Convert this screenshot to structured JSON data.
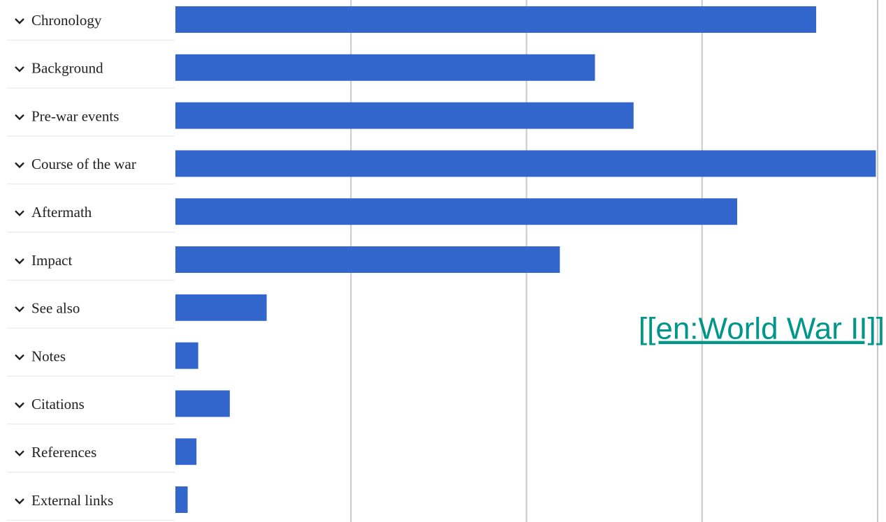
{
  "chart_data": {
    "type": "bar",
    "orientation": "horizontal",
    "categories": [
      "Chronology",
      "Background",
      "Pre-war events",
      "Course of the war",
      "Aftermath",
      "Impact",
      "See also",
      "Notes",
      "Citations",
      "References",
      "External links"
    ],
    "values": [
      3.65,
      2.39,
      2.61,
      3.99,
      3.2,
      2.19,
      0.52,
      0.13,
      0.31,
      0.12,
      0.07
    ],
    "color": "#3366cc",
    "xlim": [
      0,
      4
    ],
    "xticks": [
      1,
      2,
      3,
      4
    ],
    "grid": true,
    "annotation": "[[en:World War II]]"
  }
}
